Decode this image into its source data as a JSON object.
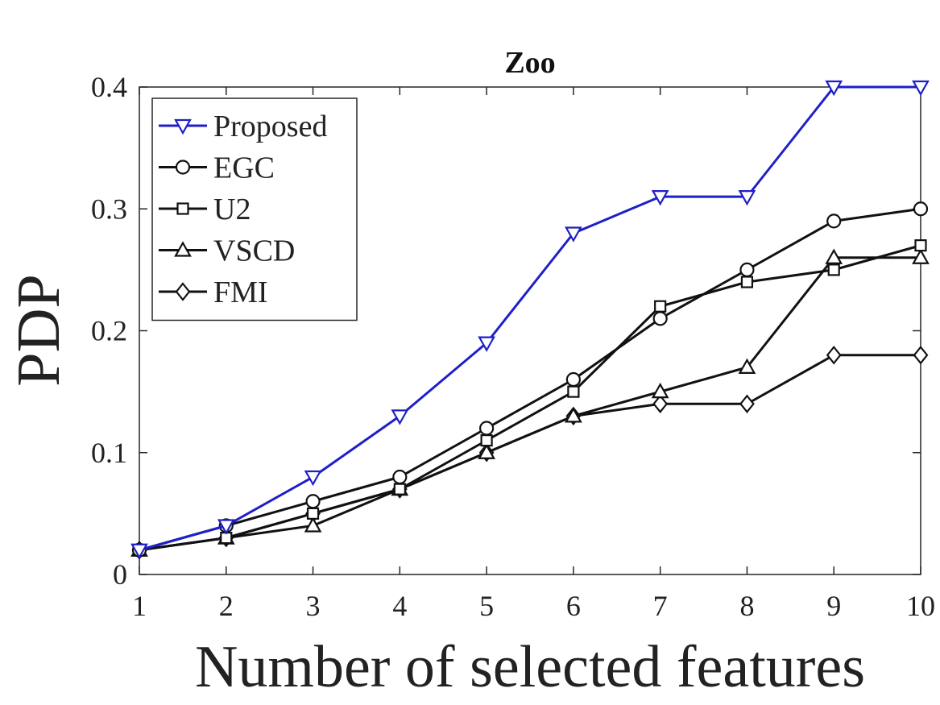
{
  "chart_data": {
    "type": "line",
    "title": "Zoo",
    "xlabel": "Number of selected features",
    "ylabel": "PDP",
    "x": [
      1,
      2,
      3,
      4,
      5,
      6,
      7,
      8,
      9,
      10
    ],
    "xlim": [
      1,
      10
    ],
    "ylim": [
      0,
      0.4
    ],
    "xticks": [
      1,
      2,
      3,
      4,
      5,
      6,
      7,
      8,
      9,
      10
    ],
    "xtick_labels": [
      "1",
      "2",
      "3",
      "4",
      "5",
      "6",
      "7",
      "8",
      "9",
      "10"
    ],
    "yticks": [
      0,
      0.1,
      0.2,
      0.3,
      0.4
    ],
    "ytick_labels": [
      "0",
      "0.1",
      "0.2",
      "0.3",
      "0.4"
    ],
    "grid": false,
    "legend_position": "top-left",
    "series": [
      {
        "name": "Proposed",
        "marker": "triangle-down",
        "color": "#1f1fc8",
        "values": [
          0.02,
          0.04,
          0.08,
          0.13,
          0.19,
          0.28,
          0.31,
          0.31,
          0.4,
          0.4
        ]
      },
      {
        "name": "EGC",
        "marker": "circle",
        "color": "#111111",
        "values": [
          0.02,
          0.04,
          0.06,
          0.08,
          0.12,
          0.16,
          0.21,
          0.25,
          0.29,
          0.3
        ]
      },
      {
        "name": "U2",
        "marker": "square",
        "color": "#111111",
        "values": [
          0.02,
          0.03,
          0.05,
          0.07,
          0.11,
          0.15,
          0.22,
          0.24,
          0.25,
          0.27
        ]
      },
      {
        "name": "VSCD",
        "marker": "triangle-up",
        "color": "#111111",
        "values": [
          0.02,
          0.03,
          0.04,
          0.07,
          0.1,
          0.13,
          0.15,
          0.17,
          0.26,
          0.26
        ]
      },
      {
        "name": "FMI",
        "marker": "diamond",
        "color": "#111111",
        "values": [
          0.02,
          0.03,
          0.05,
          0.07,
          0.1,
          0.13,
          0.14,
          0.14,
          0.18,
          0.18
        ]
      }
    ]
  }
}
